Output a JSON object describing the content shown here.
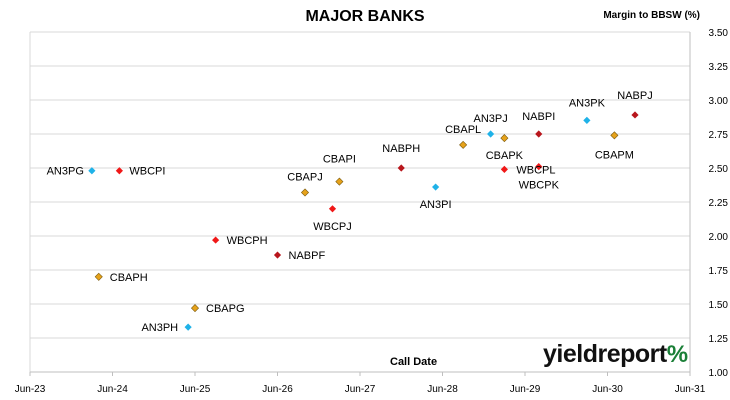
{
  "chart_data": {
    "type": "scatter",
    "title": "MAJOR BANKS",
    "xlabel": "Call Date",
    "ylabel": "Margin to BBSW (%)",
    "x_ticks": [
      "Jun-23",
      "Jun-24",
      "Jun-25",
      "Jun-26",
      "Jun-27",
      "Jun-28",
      "Jun-29",
      "Jun-30",
      "Jun-31"
    ],
    "xlim": [
      "Jun-23",
      "Jun-31"
    ],
    "ylim": [
      1.0,
      3.5
    ],
    "y_ticks": [
      "1.00",
      "1.25",
      "1.50",
      "1.75",
      "2.00",
      "2.25",
      "2.50",
      "2.75",
      "3.00",
      "3.25",
      "3.50"
    ],
    "grid": "horizontal",
    "legend": "none",
    "series_colors": {
      "ANZ": "#1fb2e8",
      "WBC": "#f01818",
      "CBA": "#e6a21a",
      "NAB": "#b8161c"
    },
    "points": [
      {
        "label": "AN3PG",
        "bank": "ANZ",
        "x": "Mar-24",
        "y": 2.48
      },
      {
        "label": "WBCPI",
        "bank": "WBC",
        "x": "Jul-24",
        "y": 2.48
      },
      {
        "label": "CBAPH",
        "bank": "CBA",
        "x": "Apr-24",
        "y": 1.7
      },
      {
        "label": "CBAPG",
        "bank": "CBA",
        "x": "Jun-25",
        "y": 1.47
      },
      {
        "label": "AN3PH",
        "bank": "ANZ",
        "x": "May-25",
        "y": 1.33
      },
      {
        "label": "WBCPH",
        "bank": "WBC",
        "x": "Sep-25",
        "y": 1.97
      },
      {
        "label": "NABPF",
        "bank": "NAB",
        "x": "Jun-26",
        "y": 1.86
      },
      {
        "label": "CBAPJ",
        "bank": "CBA",
        "x": "Oct-26",
        "y": 2.32
      },
      {
        "label": "CBAPI",
        "bank": "CBA",
        "x": "Mar-27",
        "y": 2.4
      },
      {
        "label": "WBCPJ",
        "bank": "WBC",
        "x": "Feb-27",
        "y": 2.2
      },
      {
        "label": "NABPH",
        "bank": "NAB",
        "x": "Dec-27",
        "y": 2.5
      },
      {
        "label": "AN3PI",
        "bank": "ANZ",
        "x": "May-28",
        "y": 2.36
      },
      {
        "label": "CBAPL",
        "bank": "CBA",
        "x": "Sep-28",
        "y": 2.67
      },
      {
        "label": "WBCPL",
        "bank": "WBC",
        "x": "Mar-29",
        "y": 2.49
      },
      {
        "label": "AN3PJ",
        "bank": "ANZ",
        "x": "Jan-29",
        "y": 2.75
      },
      {
        "label": "CBAPK",
        "bank": "CBA",
        "x": "Mar-29",
        "y": 2.72
      },
      {
        "label": "NABPI",
        "bank": "NAB",
        "x": "Aug-29",
        "y": 2.75
      },
      {
        "label": "WBCPK",
        "bank": "WBC",
        "x": "Aug-29",
        "y": 2.51
      },
      {
        "label": "AN3PK",
        "bank": "ANZ",
        "x": "Mar-30",
        "y": 2.85
      },
      {
        "label": "CBAPM",
        "bank": "CBA",
        "x": "Jul-30",
        "y": 2.74
      },
      {
        "label": "NABPJ",
        "bank": "NAB",
        "x": "Oct-30",
        "y": 2.89
      }
    ]
  },
  "brand": {
    "logo_text": "yieldreport",
    "logo_symbol": "%"
  }
}
